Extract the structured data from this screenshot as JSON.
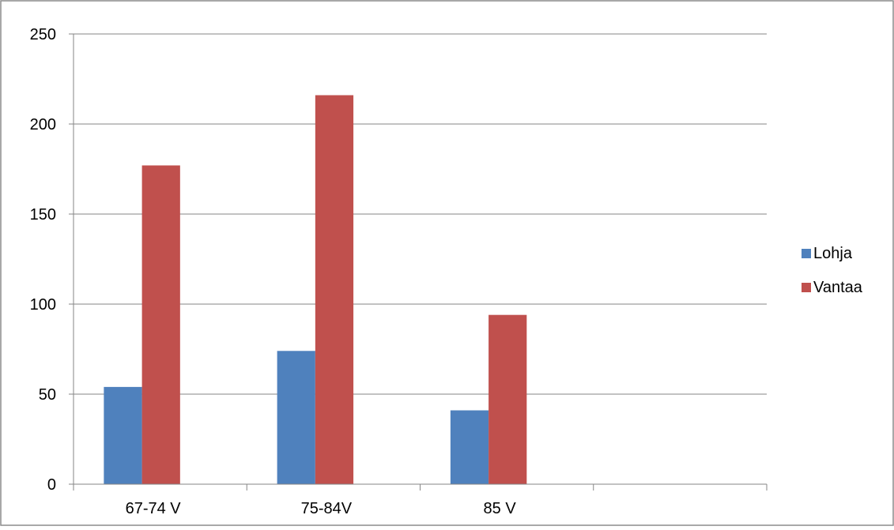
{
  "chart_data": {
    "type": "bar",
    "categories": [
      "67-74 V",
      "75-84V",
      "85 V",
      ""
    ],
    "series": [
      {
        "name": "Lohja",
        "values": [
          54,
          74,
          41,
          null
        ]
      },
      {
        "name": "Vantaa",
        "values": [
          177,
          216,
          94,
          null
        ]
      }
    ],
    "ylim": [
      0,
      250
    ],
    "yticks": [
      0,
      50,
      100,
      150,
      200,
      250
    ],
    "title": "",
    "xlabel": "",
    "ylabel": "",
    "grid": true,
    "legend_position": "right",
    "colors": {
      "Lohja": "#4F81BD",
      "Vantaa": "#C0504D"
    }
  }
}
